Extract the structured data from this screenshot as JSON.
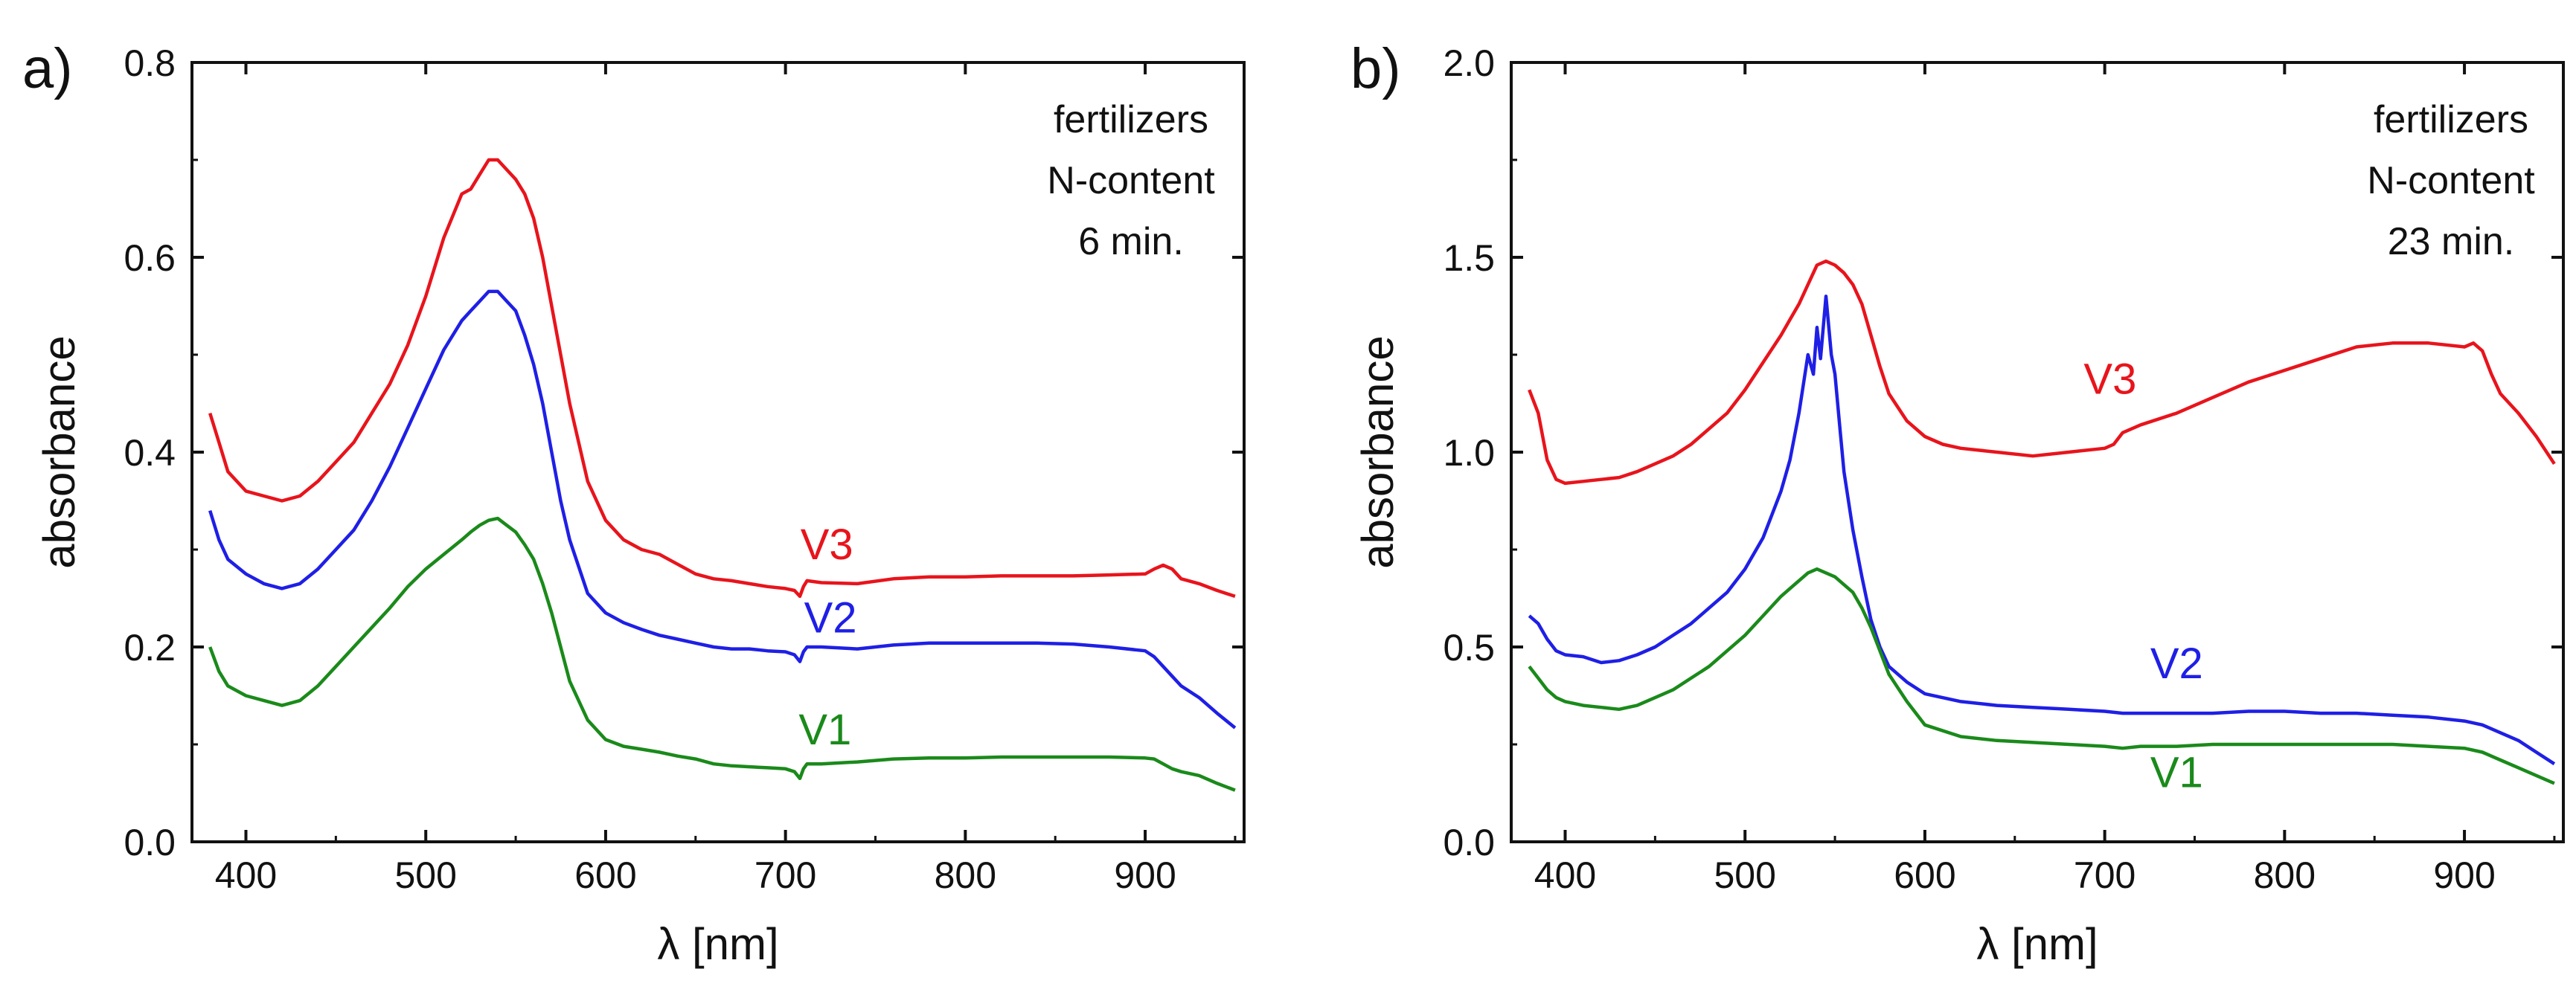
{
  "chart_data": [
    {
      "type": "line",
      "panel_label": "a)",
      "xlabel": "λ [nm]",
      "ylabel": "absorbance",
      "xlim": [
        370,
        955
      ],
      "ylim": [
        0.0,
        0.8
      ],
      "xticks": [
        400,
        500,
        600,
        700,
        800,
        900
      ],
      "yticks": [
        0.0,
        0.2,
        0.4,
        0.6,
        0.8
      ],
      "yticklabels": [
        "0.0",
        "0.2",
        "0.4",
        "0.6",
        "0.8"
      ],
      "annotation": [
        "fertilizers",
        "N-content",
        "6 min."
      ],
      "series": [
        {
          "name": "V3",
          "color": "#e8141c",
          "label_at": [
            723,
            0.29
          ],
          "x": [
            380,
            385,
            390,
            400,
            410,
            420,
            430,
            440,
            450,
            460,
            470,
            480,
            490,
            500,
            510,
            520,
            525,
            530,
            535,
            540,
            545,
            550,
            555,
            560,
            565,
            570,
            575,
            580,
            590,
            600,
            610,
            620,
            630,
            640,
            650,
            660,
            670,
            680,
            690,
            700,
            705,
            708,
            710,
            712,
            720,
            740,
            760,
            780,
            800,
            820,
            840,
            860,
            880,
            900,
            905,
            910,
            915,
            920,
            930,
            940,
            950
          ],
          "y": [
            0.44,
            0.41,
            0.38,
            0.36,
            0.355,
            0.35,
            0.355,
            0.37,
            0.39,
            0.41,
            0.44,
            0.47,
            0.51,
            0.56,
            0.62,
            0.665,
            0.67,
            0.685,
            0.7,
            0.7,
            0.69,
            0.68,
            0.665,
            0.64,
            0.6,
            0.55,
            0.5,
            0.45,
            0.37,
            0.33,
            0.31,
            0.3,
            0.295,
            0.285,
            0.275,
            0.27,
            0.268,
            0.265,
            0.262,
            0.26,
            0.258,
            0.252,
            0.262,
            0.268,
            0.266,
            0.265,
            0.27,
            0.272,
            0.272,
            0.273,
            0.273,
            0.273,
            0.274,
            0.275,
            0.28,
            0.284,
            0.28,
            0.27,
            0.265,
            0.258,
            0.252
          ]
        },
        {
          "name": "V2",
          "color": "#1f1fe6",
          "label_at": [
            725,
            0.215
          ],
          "x": [
            380,
            385,
            390,
            400,
            410,
            420,
            430,
            440,
            450,
            460,
            470,
            480,
            490,
            500,
            510,
            520,
            525,
            530,
            535,
            540,
            545,
            550,
            555,
            560,
            565,
            570,
            575,
            580,
            590,
            600,
            610,
            620,
            630,
            640,
            650,
            660,
            670,
            680,
            690,
            700,
            705,
            708,
            710,
            712,
            720,
            740,
            760,
            780,
            800,
            820,
            840,
            860,
            880,
            900,
            905,
            910,
            915,
            920,
            930,
            940,
            950
          ],
          "y": [
            0.34,
            0.31,
            0.29,
            0.275,
            0.265,
            0.26,
            0.265,
            0.28,
            0.3,
            0.32,
            0.35,
            0.385,
            0.425,
            0.465,
            0.505,
            0.535,
            0.545,
            0.555,
            0.565,
            0.565,
            0.555,
            0.545,
            0.52,
            0.49,
            0.45,
            0.4,
            0.35,
            0.31,
            0.255,
            0.235,
            0.225,
            0.218,
            0.212,
            0.208,
            0.204,
            0.2,
            0.198,
            0.198,
            0.196,
            0.195,
            0.192,
            0.185,
            0.195,
            0.2,
            0.2,
            0.198,
            0.202,
            0.204,
            0.204,
            0.204,
            0.204,
            0.203,
            0.2,
            0.196,
            0.19,
            0.18,
            0.17,
            0.16,
            0.148,
            0.132,
            0.117
          ]
        },
        {
          "name": "V1",
          "color": "#1a8a1a",
          "label_at": [
            722,
            0.1
          ],
          "x": [
            380,
            385,
            390,
            400,
            410,
            420,
            430,
            440,
            450,
            460,
            470,
            480,
            490,
            500,
            510,
            520,
            525,
            530,
            535,
            540,
            545,
            550,
            555,
            560,
            565,
            570,
            575,
            580,
            590,
            600,
            610,
            620,
            630,
            640,
            650,
            660,
            670,
            680,
            690,
            700,
            705,
            708,
            710,
            712,
            720,
            740,
            760,
            780,
            800,
            820,
            840,
            860,
            880,
            900,
            905,
            910,
            915,
            920,
            930,
            940,
            950
          ],
          "y": [
            0.2,
            0.175,
            0.16,
            0.15,
            0.145,
            0.14,
            0.145,
            0.16,
            0.18,
            0.2,
            0.22,
            0.24,
            0.262,
            0.28,
            0.295,
            0.31,
            0.318,
            0.325,
            0.33,
            0.332,
            0.325,
            0.318,
            0.305,
            0.29,
            0.265,
            0.235,
            0.2,
            0.165,
            0.125,
            0.105,
            0.098,
            0.095,
            0.092,
            0.088,
            0.085,
            0.08,
            0.078,
            0.077,
            0.076,
            0.075,
            0.072,
            0.065,
            0.075,
            0.08,
            0.08,
            0.082,
            0.085,
            0.086,
            0.086,
            0.087,
            0.087,
            0.087,
            0.087,
            0.086,
            0.085,
            0.08,
            0.075,
            0.072,
            0.068,
            0.06,
            0.053
          ]
        }
      ]
    },
    {
      "type": "line",
      "panel_label": "b)",
      "xlabel": "λ [nm]",
      "ylabel": "absorbance",
      "xlim": [
        370,
        955
      ],
      "ylim": [
        0.0,
        2.0
      ],
      "xticks": [
        400,
        500,
        600,
        700,
        800,
        900
      ],
      "yticks": [
        0.0,
        0.5,
        1.0,
        1.5,
        2.0
      ],
      "yticklabels": [
        "0.0",
        "0.5",
        "1.0",
        "1.5",
        "2.0"
      ],
      "annotation": [
        "fertilizers",
        "N-content",
        "23 min."
      ],
      "series": [
        {
          "name": "V3",
          "color": "#e8141c",
          "label_at": [
            703,
            1.15
          ],
          "x": [
            380,
            385,
            390,
            395,
            400,
            410,
            420,
            430,
            440,
            450,
            460,
            470,
            480,
            490,
            500,
            510,
            520,
            525,
            530,
            535,
            540,
            545,
            550,
            555,
            560,
            565,
            570,
            575,
            580,
            590,
            600,
            610,
            620,
            640,
            660,
            680,
            700,
            705,
            710,
            715,
            720,
            740,
            760,
            780,
            800,
            820,
            840,
            860,
            880,
            900,
            905,
            910,
            915,
            920,
            930,
            940,
            950
          ],
          "y": [
            1.16,
            1.1,
            0.98,
            0.93,
            0.92,
            0.925,
            0.93,
            0.935,
            0.95,
            0.97,
            0.99,
            1.02,
            1.06,
            1.1,
            1.16,
            1.23,
            1.3,
            1.34,
            1.38,
            1.43,
            1.48,
            1.49,
            1.48,
            1.46,
            1.43,
            1.38,
            1.3,
            1.22,
            1.15,
            1.08,
            1.04,
            1.02,
            1.01,
            1.0,
            0.99,
            1.0,
            1.01,
            1.02,
            1.05,
            1.06,
            1.07,
            1.1,
            1.14,
            1.18,
            1.21,
            1.24,
            1.27,
            1.28,
            1.28,
            1.27,
            1.28,
            1.26,
            1.2,
            1.15,
            1.1,
            1.04,
            0.97
          ]
        },
        {
          "name": "V2",
          "color": "#1f1fe6",
          "label_at": [
            740,
            0.42
          ],
          "x": [
            380,
            385,
            390,
            395,
            400,
            410,
            420,
            430,
            440,
            450,
            460,
            470,
            480,
            490,
            500,
            510,
            520,
            525,
            530,
            535,
            538,
            540,
            542,
            545,
            548,
            550,
            553,
            555,
            560,
            565,
            570,
            575,
            580,
            590,
            600,
            620,
            640,
            660,
            680,
            700,
            710,
            720,
            740,
            760,
            780,
            800,
            820,
            840,
            860,
            880,
            900,
            910,
            920,
            930,
            940,
            950
          ],
          "y": [
            0.58,
            0.56,
            0.52,
            0.49,
            0.48,
            0.475,
            0.46,
            0.465,
            0.48,
            0.5,
            0.53,
            0.56,
            0.6,
            0.64,
            0.7,
            0.78,
            0.9,
            0.98,
            1.1,
            1.25,
            1.2,
            1.32,
            1.24,
            1.4,
            1.25,
            1.2,
            1.05,
            0.95,
            0.8,
            0.68,
            0.57,
            0.5,
            0.45,
            0.41,
            0.38,
            0.36,
            0.35,
            0.345,
            0.34,
            0.335,
            0.33,
            0.33,
            0.33,
            0.33,
            0.335,
            0.335,
            0.33,
            0.33,
            0.325,
            0.32,
            0.31,
            0.3,
            0.28,
            0.26,
            0.23,
            0.2
          ]
        },
        {
          "name": "V1",
          "color": "#1a8a1a",
          "label_at": [
            740,
            0.14
          ],
          "x": [
            380,
            385,
            390,
            395,
            400,
            410,
            420,
            430,
            440,
            450,
            460,
            470,
            480,
            490,
            500,
            510,
            520,
            525,
            530,
            535,
            540,
            545,
            550,
            555,
            560,
            565,
            570,
            575,
            580,
            590,
            600,
            620,
            640,
            660,
            680,
            700,
            710,
            720,
            740,
            760,
            780,
            800,
            820,
            840,
            860,
            880,
            900,
            910,
            920,
            930,
            940,
            950
          ],
          "y": [
            0.45,
            0.42,
            0.39,
            0.37,
            0.36,
            0.35,
            0.345,
            0.34,
            0.35,
            0.37,
            0.39,
            0.42,
            0.45,
            0.49,
            0.53,
            0.58,
            0.63,
            0.65,
            0.67,
            0.69,
            0.7,
            0.69,
            0.68,
            0.66,
            0.64,
            0.6,
            0.55,
            0.49,
            0.43,
            0.36,
            0.3,
            0.27,
            0.26,
            0.255,
            0.25,
            0.245,
            0.24,
            0.245,
            0.245,
            0.25,
            0.25,
            0.25,
            0.25,
            0.25,
            0.25,
            0.245,
            0.24,
            0.23,
            0.21,
            0.19,
            0.17,
            0.15
          ]
        }
      ]
    }
  ]
}
